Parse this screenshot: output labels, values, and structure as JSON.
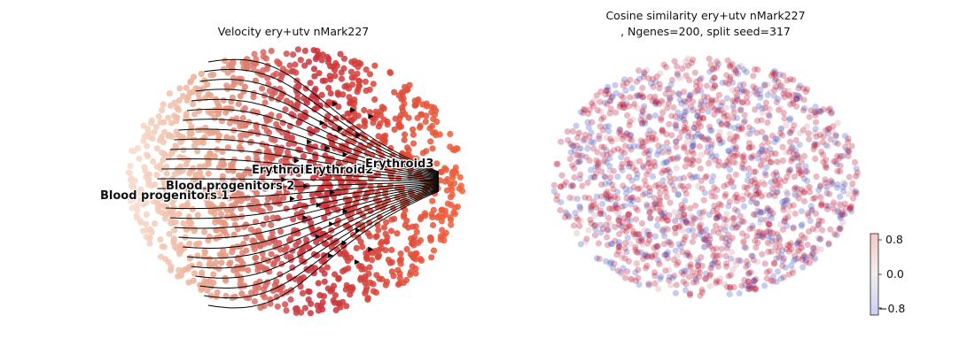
{
  "chart_data": [
    {
      "type": "scatter",
      "subtype": "velocity-stream-embedding",
      "title": "Velocity ery+utv nMark227",
      "axes_visible": false,
      "grid": false,
      "clusters": [
        {
          "name": "Blood progenitors 1",
          "label": "Blood progenitors 1",
          "color": "#f8dccc"
        },
        {
          "name": "Blood progenitors 2",
          "label": "Blood progenitors 2",
          "color": "#e8a288"
        },
        {
          "name": "Erythroid1",
          "label": "Erythroi",
          "color": "#d8584c"
        },
        {
          "name": "Erythroid2",
          "label": "Erythroid2",
          "color": "#c8303a"
        },
        {
          "name": "Erythroid3",
          "label": "Erythroid3",
          "color": "#f0603a"
        }
      ],
      "stream": {
        "direction": "left-to-right",
        "color": "#000000",
        "converges_at": "Erythroid3"
      }
    },
    {
      "type": "scatter",
      "title_line1": "Cosine similarity ery+utv nMark227",
      "title_line2": ", Ngenes=200, split seed=317",
      "axes_visible": false,
      "grid": false,
      "colormap": [
        "#3b4cc0",
        "#dddddd",
        "#b40426"
      ],
      "colorbar": {
        "ticks": [
          {
            "value": 0.8,
            "label": "0.8"
          },
          {
            "value": 0.0,
            "label": "0.0"
          },
          {
            "value": -0.8,
            "label": "−0.8"
          }
        ],
        "range": [
          -1.0,
          1.0
        ],
        "placement": "bottom-right"
      }
    }
  ]
}
